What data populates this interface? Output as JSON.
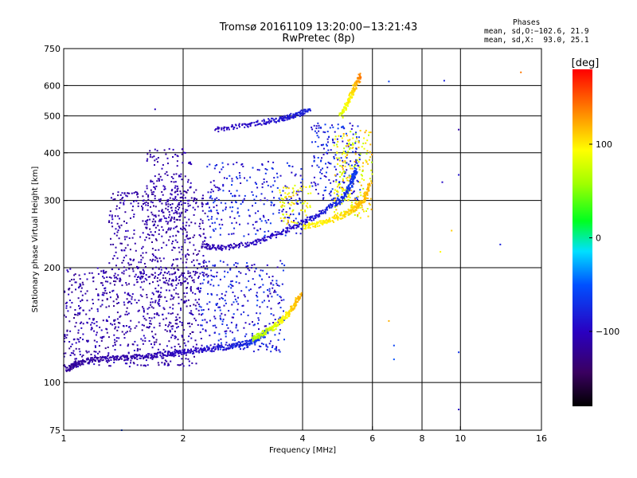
{
  "title": "Tromsø 20161109 13:20:00−13:21:43",
  "subtitle": "RwPretec (8p)",
  "stats": {
    "heading": "Phases",
    "line_o": "mean, sd,O:−102.6, 21.9",
    "line_x": "mean, sd,X:  93.0, 25.1"
  },
  "colorbar": {
    "label": "[deg]",
    "min": -180,
    "max": 180,
    "ticks": [
      100,
      0,
      -100
    ],
    "tick_labels": [
      "100",
      "0",
      "−100"
    ]
  },
  "chart_data": {
    "type": "scatter",
    "xlabel": "Frequency [MHz]",
    "ylabel": "Stationary phase Virtual Height [km]",
    "x_scale": "log",
    "y_scale": "log",
    "xlim": [
      1,
      16
    ],
    "ylim": [
      75,
      750
    ],
    "x_ticks": [
      1,
      2,
      4,
      6,
      8,
      10,
      16
    ],
    "x_tick_labels": [
      "1",
      "2",
      "4",
      "6",
      "8",
      "10",
      "16"
    ],
    "y_ticks": [
      75,
      100,
      200,
      300,
      400,
      500,
      600,
      750
    ],
    "y_tick_labels": [
      "75",
      "100",
      "200",
      "300",
      "400",
      "500",
      "600",
      "750"
    ],
    "grid": true,
    "color_by": "phase_deg",
    "traces": [
      {
        "name_hint": "E-region O trace",
        "x": [
          1.02,
          1.08,
          1.2,
          1.4,
          1.6,
          1.8,
          2.0,
          2.3,
          2.6,
          2.9,
          3.1,
          3.3
        ],
        "y": [
          108,
          112,
          115,
          116,
          117,
          119,
          120,
          122,
          124,
          127,
          130,
          138
        ],
        "phase_deg": [
          -120,
          -118,
          -115,
          -112,
          -110,
          -105,
          -100,
          -95,
          -85,
          -75,
          -65,
          -55
        ]
      },
      {
        "name_hint": "E-region X trace",
        "x": [
          3.0,
          3.2,
          3.4,
          3.6,
          3.8,
          3.95
        ],
        "y": [
          130,
          135,
          140,
          148,
          158,
          170
        ],
        "phase_deg": [
          60,
          70,
          80,
          95,
          110,
          120
        ]
      },
      {
        "name_hint": "F-region O trace",
        "x": [
          2.25,
          2.5,
          3.0,
          3.5,
          4.0,
          4.5,
          5.0,
          5.3,
          5.45
        ],
        "y": [
          228,
          225,
          232,
          245,
          262,
          280,
          300,
          330,
          360
        ],
        "phase_deg": [
          -110,
          -105,
          -100,
          -95,
          -90,
          -85,
          -75,
          -70,
          -65
        ]
      },
      {
        "name_hint": "F-region X trace",
        "x": [
          4.0,
          4.5,
          5.0,
          5.4,
          5.7,
          5.9
        ],
        "y": [
          255,
          262,
          272,
          285,
          300,
          330
        ],
        "phase_deg": [
          95,
          100,
          105,
          110,
          115,
          120
        ]
      },
      {
        "name_hint": "upper O trace",
        "x": [
          2.4,
          3.0,
          3.5,
          3.8,
          4.2
        ],
        "y": [
          460,
          475,
          490,
          500,
          520
        ],
        "phase_deg": [
          -100,
          -95,
          -90,
          -85,
          -80
        ]
      },
      {
        "name_hint": "upper X trace",
        "x": [
          5.0,
          5.2,
          5.4,
          5.6
        ],
        "y": [
          500,
          540,
          590,
          640
        ],
        "phase_deg": [
          80,
          95,
          110,
          140
        ]
      }
    ],
    "scattered_points": [
      {
        "x": 1.7,
        "y": 520,
        "phase_deg": -100
      },
      {
        "x": 6.6,
        "y": 615,
        "phase_deg": -60
      },
      {
        "x": 9.1,
        "y": 618,
        "phase_deg": -80
      },
      {
        "x": 14.2,
        "y": 650,
        "phase_deg": 140
      },
      {
        "x": 9.9,
        "y": 460,
        "phase_deg": -110
      },
      {
        "x": 9.9,
        "y": 350,
        "phase_deg": -90
      },
      {
        "x": 9.0,
        "y": 335,
        "phase_deg": -95
      },
      {
        "x": 9.5,
        "y": 250,
        "phase_deg": 110
      },
      {
        "x": 12.6,
        "y": 230,
        "phase_deg": -80
      },
      {
        "x": 8.9,
        "y": 220,
        "phase_deg": 95
      },
      {
        "x": 6.6,
        "y": 145,
        "phase_deg": 120
      },
      {
        "x": 6.8,
        "y": 125,
        "phase_deg": -60
      },
      {
        "x": 6.8,
        "y": 115,
        "phase_deg": -50
      },
      {
        "x": 9.9,
        "y": 120,
        "phase_deg": -70
      },
      {
        "x": 9.9,
        "y": 85,
        "phase_deg": -95
      },
      {
        "x": 1.4,
        "y": 75,
        "phase_deg": -60
      }
    ]
  }
}
